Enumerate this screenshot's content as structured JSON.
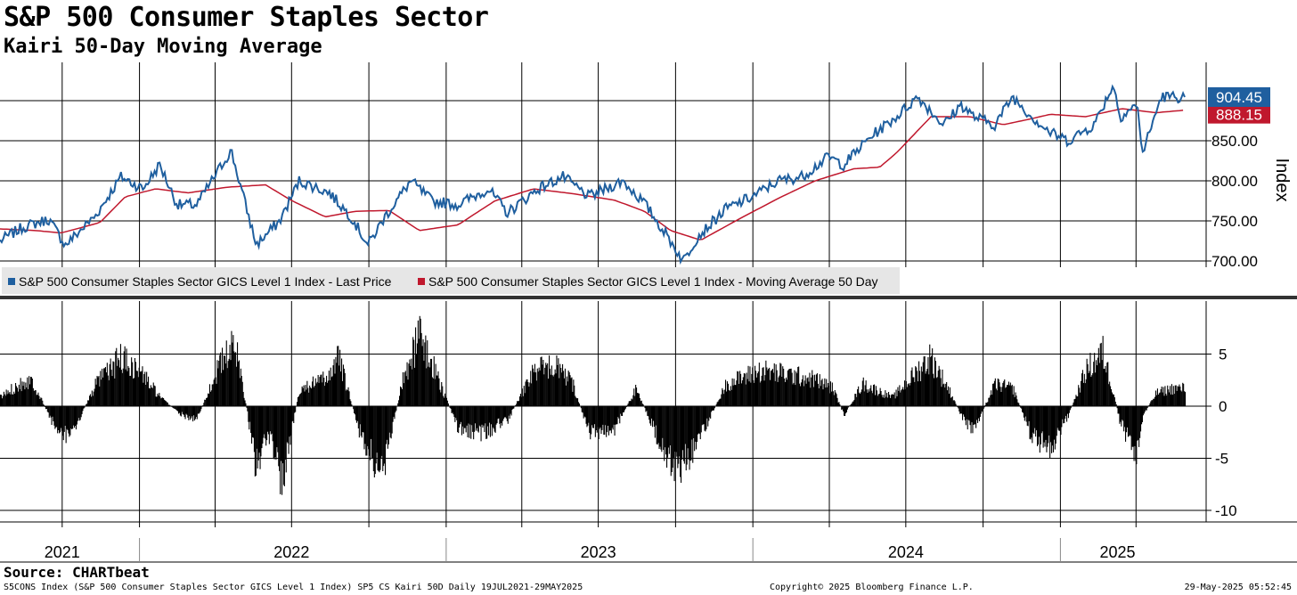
{
  "header": {
    "title": "S&P 500 Consumer Staples Sector",
    "subtitle": "Kairi 50-Day Moving Average"
  },
  "footer": {
    "source": "Source: CHARTbeat",
    "description": "S5CONS Index (S&P 500 Consumer Staples Sector GICS Level 1 Index) SP5 CS Kairi 50D  Daily 19JUL2021-29MAY2025",
    "copyright": "Copyright© 2025 Bloomberg Finance L.P.",
    "timestamp": "29-May-2025 05:52:45"
  },
  "colors": {
    "price": "#1f5f9f",
    "ma": "#c0182d",
    "kairi": "#000000",
    "grid": "#000000",
    "legend_bg": "#e6e6e6"
  },
  "chart_data": [
    {
      "type": "line",
      "ylabel": "Index",
      "ylim": [
        650,
        945
      ],
      "yticks": [
        "700.00",
        "750.00",
        "800.00",
        "850.00"
      ],
      "last_values": {
        "price": "904.45",
        "ma": "888.15"
      },
      "x_labels": [
        "2021",
        "2022",
        "2023",
        "2024",
        "2025"
      ],
      "x_range": [
        "2021-07-19",
        "2025-05-29"
      ],
      "legend": [
        "S&P 500 Consumer Staples Sector GICS Level 1 Index - Last Price",
        "S&P 500 Consumer Staples Sector GICS Level 1 Index - Moving Average 50 Day"
      ],
      "series": [
        {
          "name": "S&P 500 Consumer Staples Sector GICS Level 1 Index - Last Price",
          "x": [
            "2021-07-19",
            "2021-08-15",
            "2021-09-15",
            "2021-10-05",
            "2021-11-10",
            "2021-12-10",
            "2022-01-05",
            "2022-01-25",
            "2022-02-15",
            "2022-03-10",
            "2022-04-20",
            "2022-05-20",
            "2022-06-17",
            "2022-07-10",
            "2022-08-15",
            "2022-09-10",
            "2022-09-30",
            "2022-10-20",
            "2022-11-20",
            "2022-12-15",
            "2023-01-15",
            "2023-02-20",
            "2023-03-15",
            "2023-04-20",
            "2023-05-20",
            "2023-06-20",
            "2023-07-30",
            "2023-08-25",
            "2023-09-25",
            "2023-10-10",
            "2023-10-27",
            "2023-11-30",
            "2023-12-31",
            "2024-01-31",
            "2024-02-28",
            "2024-03-31",
            "2024-04-18",
            "2024-05-20",
            "2024-06-20",
            "2024-07-15",
            "2024-08-15",
            "2024-09-05",
            "2024-09-20",
            "2024-10-15",
            "2024-11-05",
            "2024-11-28",
            "2024-12-20",
            "2025-01-10",
            "2025-02-10",
            "2025-03-05",
            "2025-03-13",
            "2025-04-02",
            "2025-04-09",
            "2025-05-01",
            "2025-05-29"
          ],
          "values": [
            725,
            742,
            752,
            720,
            757,
            805,
            790,
            820,
            770,
            770,
            838,
            720,
            750,
            800,
            785,
            755,
            720,
            755,
            800,
            775,
            770,
            790,
            760,
            790,
            805,
            780,
            800,
            772,
            725,
            700,
            730,
            765,
            780,
            800,
            805,
            830,
            820,
            855,
            880,
            905,
            870,
            895,
            880,
            870,
            905,
            880,
            860,
            850,
            870,
            920,
            880,
            895,
            835,
            905,
            904.45
          ]
        },
        {
          "name": "S&P 500 Consumer Staples Sector GICS Level 1 Index - Moving Average 50 Day",
          "x": [
            "2021-07-19",
            "2021-08-30",
            "2021-09-30",
            "2021-11-15",
            "2021-12-15",
            "2022-01-20",
            "2022-02-28",
            "2022-04-15",
            "2022-05-31",
            "2022-06-30",
            "2022-08-10",
            "2022-09-15",
            "2022-10-25",
            "2022-11-30",
            "2023-01-15",
            "2023-02-28",
            "2023-04-15",
            "2023-05-31",
            "2023-07-20",
            "2023-08-25",
            "2023-09-25",
            "2023-10-31",
            "2023-12-15",
            "2024-01-31",
            "2024-03-15",
            "2024-04-30",
            "2024-05-31",
            "2024-06-20",
            "2024-07-31",
            "2024-09-15",
            "2024-10-25",
            "2024-11-30",
            "2024-12-20",
            "2025-01-31",
            "2025-03-15",
            "2025-04-25",
            "2025-05-29"
          ],
          "values": [
            740,
            738,
            735,
            748,
            780,
            790,
            785,
            792,
            795,
            776,
            755,
            762,
            763,
            738,
            745,
            775,
            790,
            784,
            776,
            762,
            738,
            726,
            752,
            778,
            800,
            815,
            817,
            835,
            880,
            880,
            870,
            878,
            883,
            880,
            890,
            885,
            888.15
          ]
        }
      ]
    },
    {
      "type": "bar",
      "ylim": [
        -11,
        9.5
      ],
      "yticks": [
        "5",
        "0",
        "-5",
        "-10"
      ],
      "series": [
        {
          "name": "Kairi 50D",
          "x": [
            "2021-07-19",
            "2021-08-10",
            "2021-08-25",
            "2021-09-20",
            "2021-10-10",
            "2021-11-10",
            "2021-12-10",
            "2022-01-05",
            "2022-01-25",
            "2022-02-20",
            "2022-03-10",
            "2022-04-05",
            "2022-04-25",
            "2022-05-20",
            "2022-06-05",
            "2022-06-18",
            "2022-07-10",
            "2022-08-10",
            "2022-08-25",
            "2022-09-20",
            "2022-10-15",
            "2022-11-10",
            "2022-11-30",
            "2022-12-20",
            "2023-01-15",
            "2023-02-15",
            "2023-03-15",
            "2023-04-15",
            "2023-05-10",
            "2023-05-31",
            "2023-06-20",
            "2023-07-20",
            "2023-08-15",
            "2023-09-15",
            "2023-10-05",
            "2023-10-27",
            "2023-11-30",
            "2024-01-10",
            "2024-02-15",
            "2024-03-15",
            "2024-04-05",
            "2024-04-18",
            "2024-05-10",
            "2024-06-15",
            "2024-07-10",
            "2024-07-30",
            "2024-08-20",
            "2024-09-10",
            "2024-09-20",
            "2024-10-15",
            "2024-11-05",
            "2024-11-28",
            "2024-12-20",
            "2025-01-10",
            "2025-01-31",
            "2025-02-20",
            "2025-03-05",
            "2025-03-13",
            "2025-04-02",
            "2025-04-09",
            "2025-04-25",
            "2025-05-15",
            "2025-05-29"
          ],
          "values": [
            1,
            2.5,
            3,
            -2,
            -3.5,
            2.5,
            5.5,
            3.5,
            1,
            -1,
            -1.5,
            4.5,
            7,
            -7,
            -3,
            -9,
            2,
            3,
            5.5,
            -3,
            -8,
            3,
            8,
            3.5,
            -2.5,
            -3,
            -1.5,
            4,
            4.5,
            2.5,
            -3,
            -2.5,
            2,
            -5,
            -7,
            -4,
            2.5,
            4,
            3.5,
            3,
            2,
            -1,
            2.5,
            1,
            3.5,
            5.5,
            2,
            -2,
            -2.5,
            2.5,
            2,
            -3.5,
            -4.5,
            -1,
            4,
            6,
            1.5,
            -2,
            -5.5,
            -1,
            1.5,
            2,
            2
          ]
        }
      ]
    }
  ]
}
